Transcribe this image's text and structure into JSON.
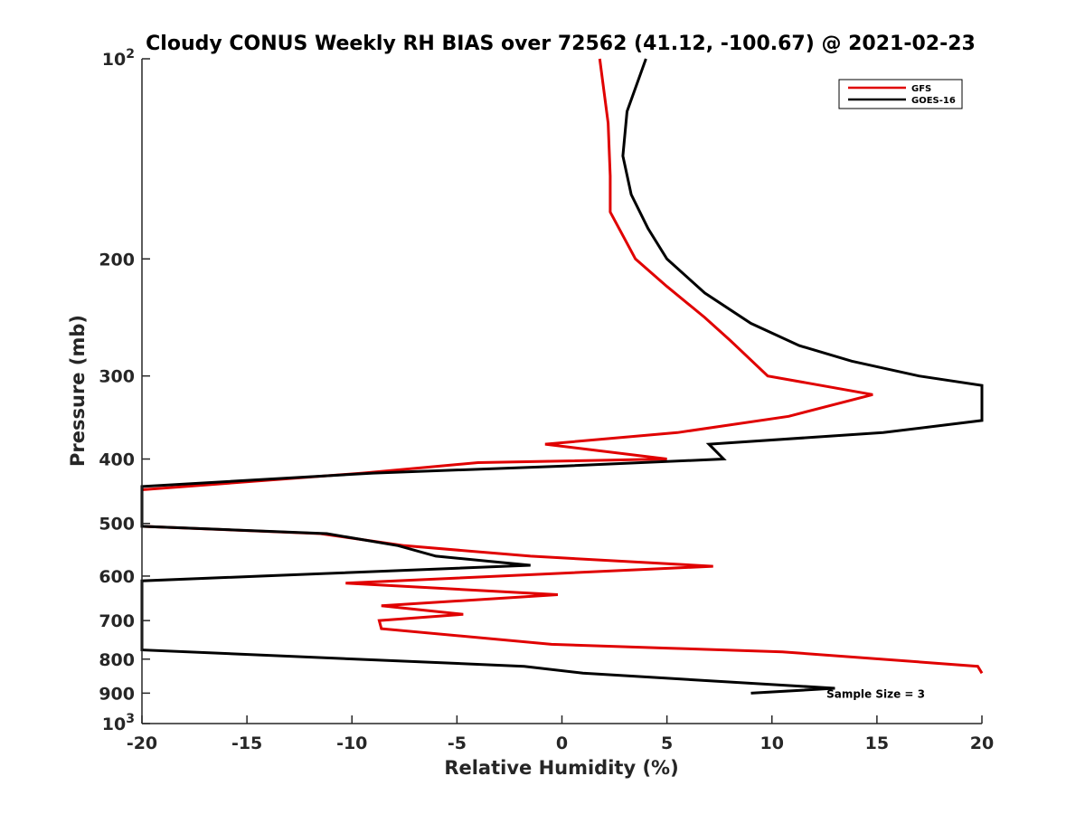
{
  "chart_data": {
    "type": "line",
    "title": "Cloudy CONUS Weekly RH BIAS over 72562 (41.12, -100.67) @ 2021-02-23",
    "xlabel": "Relative Humidity (%)",
    "ylabel": "Pressure (mb)",
    "xlim": [
      -20,
      20
    ],
    "ylim": [
      100,
      1000
    ],
    "yscale": "log",
    "yreversed": true,
    "grid": false,
    "legend_position": "top-right",
    "xticks": [
      "-20",
      "-15",
      "-10",
      "-5",
      "0",
      "5",
      "10",
      "15",
      "20"
    ],
    "yticks": [
      {
        "value": 100,
        "label": "10",
        "sup": "2"
      },
      {
        "value": 200,
        "label": "200"
      },
      {
        "value": 300,
        "label": "300"
      },
      {
        "value": 400,
        "label": "400"
      },
      {
        "value": 500,
        "label": "500"
      },
      {
        "value": 600,
        "label": "600"
      },
      {
        "value": 700,
        "label": "700"
      },
      {
        "value": 800,
        "label": "800"
      },
      {
        "value": 900,
        "label": "900"
      },
      {
        "value": 1000,
        "label": "10",
        "sup": "3"
      }
    ],
    "series": [
      {
        "name": "GFS",
        "color": "#e00000",
        "points": [
          [
            1.8,
            100
          ],
          [
            2.2,
            125
          ],
          [
            2.3,
            150
          ],
          [
            2.3,
            170
          ],
          [
            3.5,
            200
          ],
          [
            5.0,
            220
          ],
          [
            6.8,
            245
          ],
          [
            8.0,
            265
          ],
          [
            9.8,
            300
          ],
          [
            14.8,
            320
          ],
          [
            10.8,
            345
          ],
          [
            5.5,
            365
          ],
          [
            -0.8,
            380
          ],
          [
            5.0,
            400
          ],
          [
            -4.0,
            405
          ],
          [
            -9.5,
            420
          ],
          [
            -20.0,
            445
          ],
          [
            -20.0,
            490
          ],
          [
            -20.0,
            505
          ],
          [
            -11.5,
            518
          ],
          [
            -7.5,
            540
          ],
          [
            -1.5,
            560
          ],
          [
            7.2,
            580
          ],
          [
            -10.3,
            615
          ],
          [
            -0.2,
            640
          ],
          [
            -8.6,
            665
          ],
          [
            -4.7,
            685
          ],
          [
            -8.7,
            700
          ],
          [
            -8.6,
            720
          ],
          [
            -0.5,
            760
          ],
          [
            5.0,
            770
          ],
          [
            10.5,
            780
          ],
          [
            19.8,
            820
          ],
          [
            20.0,
            840
          ]
        ]
      },
      {
        "name": "GOES-16",
        "color": "#000000",
        "points": [
          [
            4.0,
            100
          ],
          [
            3.1,
            120
          ],
          [
            2.9,
            140
          ],
          [
            3.3,
            160
          ],
          [
            4.1,
            180
          ],
          [
            5.0,
            200
          ],
          [
            6.8,
            225
          ],
          [
            9.0,
            250
          ],
          [
            11.3,
            270
          ],
          [
            13.8,
            285
          ],
          [
            17.0,
            300
          ],
          [
            20.0,
            310
          ],
          [
            20.0,
            350
          ],
          [
            15.3,
            365
          ],
          [
            7.0,
            380
          ],
          [
            7.7,
            400
          ],
          [
            0.0,
            410
          ],
          [
            -9.0,
            420
          ],
          [
            -20.0,
            440
          ],
          [
            -20.0,
            505
          ],
          [
            -11.2,
            518
          ],
          [
            -7.8,
            540
          ],
          [
            -6.0,
            560
          ],
          [
            -1.5,
            578
          ],
          [
            -20.0,
            610
          ],
          [
            -20.0,
            775
          ],
          [
            -1.8,
            820
          ],
          [
            1.0,
            840
          ],
          [
            13.0,
            885
          ],
          [
            9.0,
            900
          ]
        ]
      }
    ],
    "annotations": [
      {
        "text": "Sample Size = 3",
        "x": 12.6,
        "y": 900
      }
    ]
  }
}
